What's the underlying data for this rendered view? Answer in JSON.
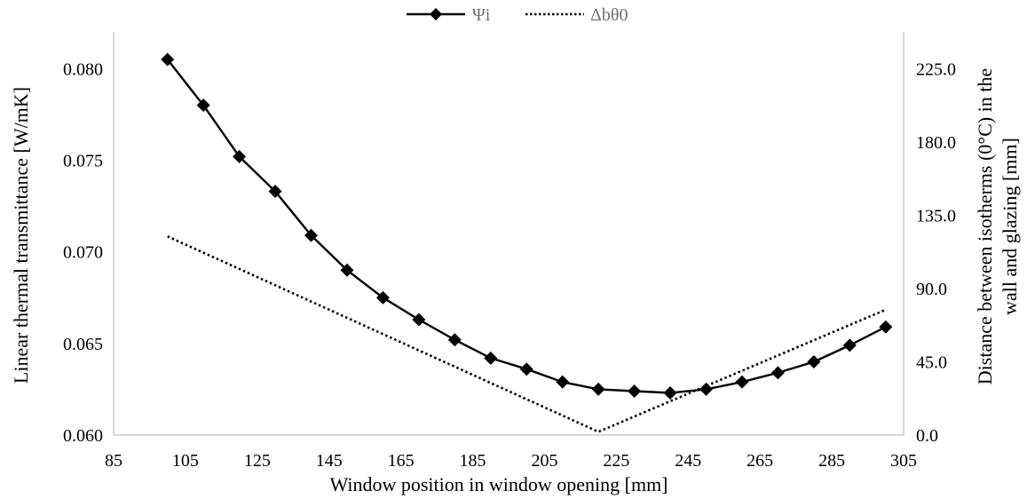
{
  "chart_data": {
    "type": "line",
    "title": "",
    "xlabel": "Window position in window opening [mm]",
    "ylabel_left": "Linear thermal transmittance [W/mK]",
    "ylabel_right_lines": [
      "Distance between isotherms (0°C) in the",
      "wall and glazing [mm]"
    ],
    "xlim": [
      85,
      305
    ],
    "ylim_left": [
      0.06,
      0.082
    ],
    "ylim_right": [
      0.0,
      247.5
    ],
    "x_ticks": [
      "85",
      "105",
      "125",
      "145",
      "165",
      "185",
      "205",
      "225",
      "245",
      "265",
      "285",
      "305"
    ],
    "y_left_ticks": [
      "0.060",
      "0.065",
      "0.070",
      "0.075",
      "0.080"
    ],
    "y_right_ticks": [
      "0.0",
      "45.0",
      "90.0",
      "135.0",
      "180.0",
      "225.0"
    ],
    "grid": false,
    "legend_position": "top-center",
    "series": [
      {
        "name": "Ψi",
        "axis": "left",
        "style": "solid-diamond",
        "color": "#000000",
        "x": [
          100,
          110,
          120,
          130,
          140,
          150,
          160,
          170,
          180,
          190,
          200,
          210,
          220,
          230,
          240,
          250,
          260,
          270,
          280,
          290,
          300
        ],
        "y": [
          0.0805,
          0.078,
          0.0752,
          0.0733,
          0.0709,
          0.069,
          0.0675,
          0.0663,
          0.0652,
          0.0642,
          0.0636,
          0.0629,
          0.0625,
          0.0624,
          0.0623,
          0.0625,
          0.0629,
          0.0634,
          0.064,
          0.0649,
          0.0659
        ]
      },
      {
        "name": "Δbθ0",
        "axis": "right",
        "style": "dotted",
        "color": "#000000",
        "x": [
          100,
          220,
          300
        ],
        "y": [
          122,
          2,
          77
        ]
      }
    ]
  }
}
